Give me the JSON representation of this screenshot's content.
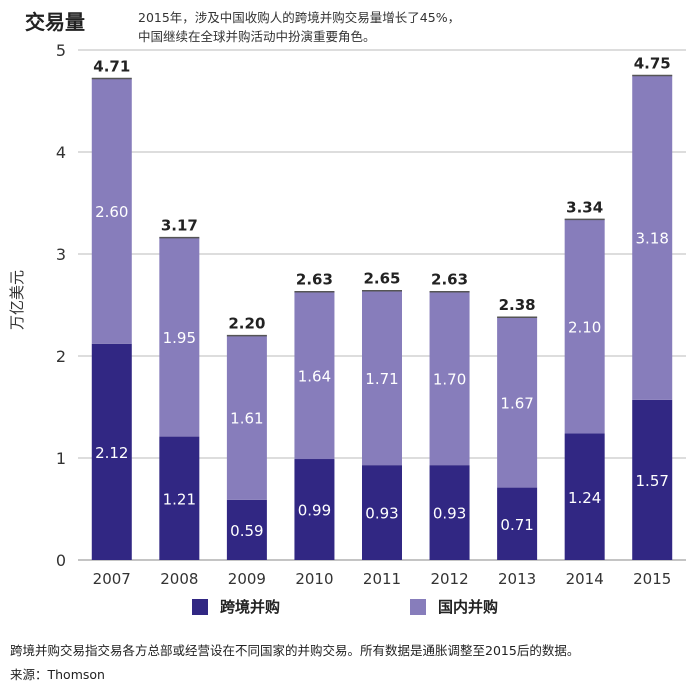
{
  "header": {
    "title": "交易量",
    "subtitle_line1": "2015年，涉及中国收购人的跨境并购交易量增长了45%，",
    "subtitle_line2": "中国继续在全球并购活动中扮演重要角色。"
  },
  "footer": {
    "note": "跨境并购交易指交易各方总部或经营设在不同国家的并购交易。所有数据是通胀调整至2015后的数据。",
    "source": "来源：Thomson"
  },
  "colors": {
    "crossborder": "#312783",
    "domestic": "#877dbb",
    "grid": "#bbbbbb"
  },
  "chart_data": {
    "type": "bar",
    "stacked": true,
    "ylabel": "万亿美元",
    "ylim": [
      0,
      5
    ],
    "yticks": [
      "0",
      "1",
      "2",
      "3",
      "4",
      "5"
    ],
    "categories": [
      "2007",
      "2008",
      "2009",
      "2010",
      "2011",
      "2012",
      "2013",
      "2014",
      "2015"
    ],
    "series": [
      {
        "name": "跨境并购",
        "values": [
          2.12,
          1.21,
          0.59,
          0.99,
          0.93,
          0.93,
          0.71,
          1.24,
          1.57
        ],
        "labels": [
          "2.12",
          "1.21",
          "0.59",
          "0.99",
          "0.93",
          "0.93",
          "0.71",
          "1.24",
          "1.57"
        ]
      },
      {
        "name": "国内并购",
        "values": [
          2.6,
          1.95,
          1.61,
          1.64,
          1.71,
          1.7,
          1.67,
          2.1,
          3.18
        ],
        "labels": [
          "2.60",
          "1.95",
          "1.61",
          "1.64",
          "1.71",
          "1.70",
          "1.67",
          "2.10",
          "3.18"
        ]
      }
    ],
    "totals": [
      "4.71",
      "3.17",
      "2.20",
      "2.63",
      "2.65",
      "2.63",
      "2.38",
      "3.34",
      "4.75"
    ],
    "grid": true,
    "legend_position": "bottom"
  }
}
